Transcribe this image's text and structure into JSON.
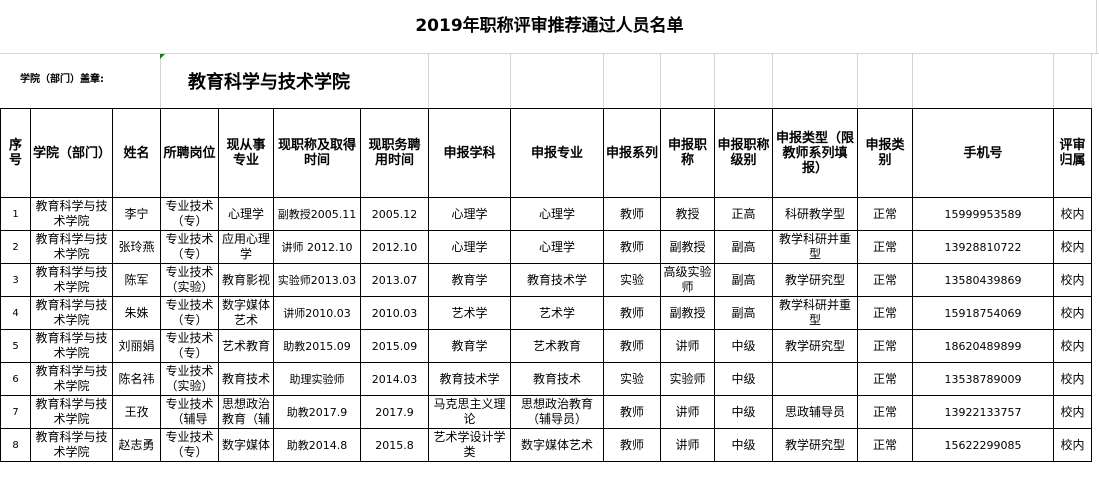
{
  "title": "2019年职称评审推荐通过人员名单",
  "dept_label": "学院（部门）盖章:",
  "dept_value": "教育科学与技术学院",
  "columns": [
    "序号",
    "学院（部门）",
    "姓名",
    "所聘岗位",
    "现从事专业",
    "现职称及取得时间",
    "现职务聘用时间",
    "申报学科",
    "申报专业",
    "申报系列",
    "申报职称",
    "申报职称级别",
    "申报类型（限教师系列填报）",
    "申报类别",
    "手机号",
    "评审归属"
  ],
  "rows": [
    [
      "1",
      "教育科学与技术学院",
      "李宁",
      "专业技术（专）",
      "心理学",
      "副教授2005.11",
      "2005.12",
      "心理学",
      "心理学",
      "教师",
      "教授",
      "正高",
      "科研教学型",
      "正常",
      "15999953589",
      "校内"
    ],
    [
      "2",
      "教育科学与技术学院",
      "张玲燕",
      "专业技术（专）",
      "应用心理学",
      "讲师 2012.10",
      "2012.10",
      "心理学",
      "心理学",
      "教师",
      "副教授",
      "副高",
      "教学科研并重型",
      "正常",
      "13928810722",
      "校内"
    ],
    [
      "3",
      "教育科学与技术学院",
      "陈军",
      "专业技术（实验）",
      "教育影视",
      "实验师2013.03",
      "2013.07",
      "教育学",
      "教育技术学",
      "实验",
      "高级实验师",
      "副高",
      "教学研究型",
      "正常",
      "13580439869",
      "校内"
    ],
    [
      "4",
      "教育科学与技术学院",
      "朱姝",
      "专业技术（专）",
      "数字媒体艺术",
      "讲师2010.03",
      "2010.03",
      "艺术学",
      "艺术学",
      "教师",
      "副教授",
      "副高",
      "教学科研并重型",
      "正常",
      "15918754069",
      "校内"
    ],
    [
      "5",
      "教育科学与技术学院",
      "刘丽娟",
      "专业技术（专）",
      "艺术教育",
      "助教2015.09",
      "2015.09",
      "教育学",
      "艺术教育",
      "教师",
      "讲师",
      "中级",
      "教学研究型",
      "正常",
      "18620489899",
      "校内"
    ],
    [
      "6",
      "教育科学与技术学院",
      "陈名祎",
      "专业技术（实验）",
      "教育技术",
      "助理实验师",
      "2014.03",
      "教育技术学",
      "教育技术",
      "实验",
      "实验师",
      "中级",
      "",
      "正常",
      "13538789009",
      "校内"
    ],
    [
      "7",
      "教育科学与技术学院",
      "王孜",
      "专业技术（辅导",
      "思想政治教育（辅",
      "助教2017.9",
      "2017.9",
      "马克思主义理论",
      "思想政治教育（辅导员）",
      "教师",
      "讲师",
      "中级",
      "思政辅导员",
      "正常",
      "13922133757",
      "校内"
    ],
    [
      "8",
      "教育科学与技术学院",
      "赵志勇",
      "专业技术（专）",
      "数字媒体",
      "助教2014.8",
      "2015.8",
      "艺术学设计学类",
      "数字媒体艺术",
      "教师",
      "讲师",
      "中级",
      "教学研究型",
      "正常",
      "15622299085",
      "校内"
    ]
  ]
}
